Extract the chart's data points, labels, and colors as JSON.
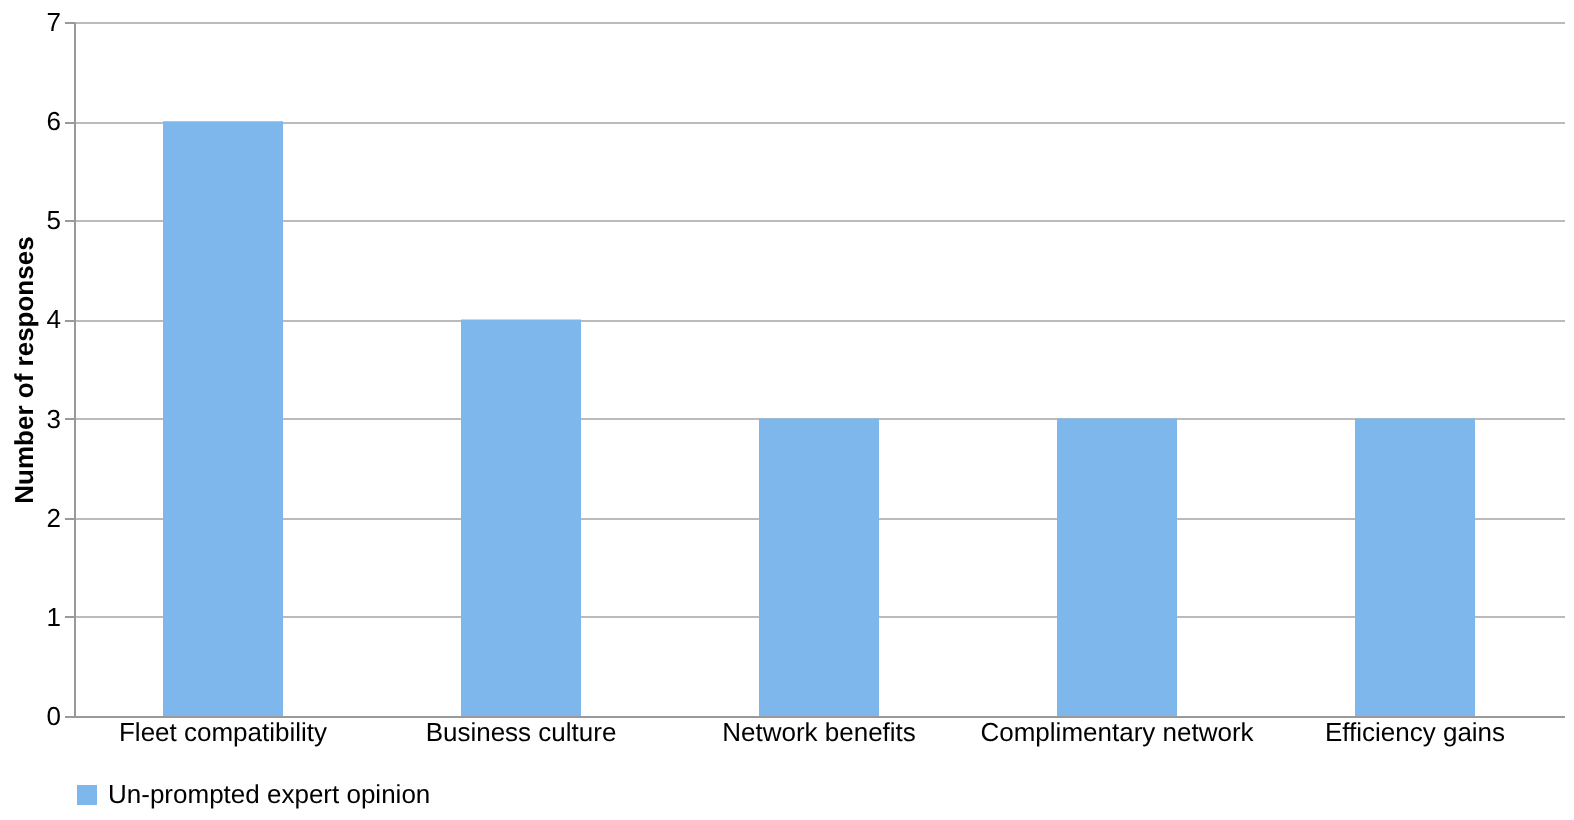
{
  "chart_data": {
    "type": "bar",
    "ylabel": "Number of responses",
    "categories": [
      "Fleet compatibility",
      "Business culture",
      "Network benefits",
      "Complimentary network",
      "Efficiency gains"
    ],
    "series": [
      {
        "name": "Un-prompted expert opinion",
        "color": "#7db7ec",
        "values": [
          6,
          4,
          3,
          3,
          3
        ]
      }
    ],
    "ylim": [
      0,
      7
    ],
    "yticks": [
      0,
      1,
      2,
      3,
      4,
      5,
      6,
      7
    ],
    "grid": "y",
    "legend": "bottom"
  }
}
